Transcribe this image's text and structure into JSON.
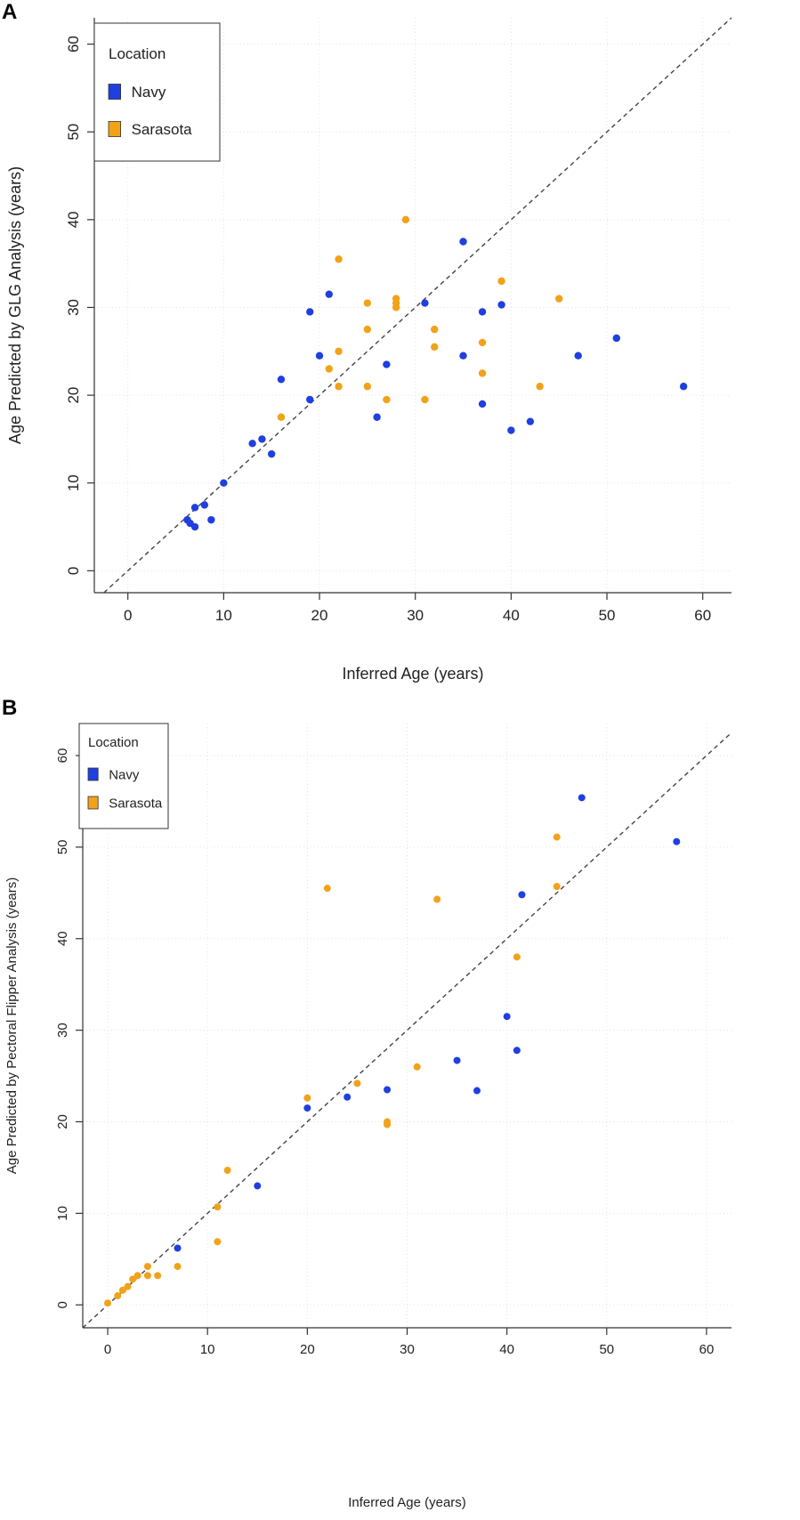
{
  "colors": {
    "navy": "#1f3fe0",
    "sarasota": "#f2a218",
    "grid": "#e3e3e3",
    "axis": "#333333",
    "diagonal": "#444444"
  },
  "chart_data": [
    {
      "panel_label": "A",
      "type": "scatter",
      "title": "",
      "xlabel": "Inferred Age (years)",
      "ylabel": "Age Predicted by GLG Analysis (years)",
      "xlim": [
        -3.5,
        63
      ],
      "ylim": [
        -2.5,
        63
      ],
      "xticks": [
        0,
        10,
        20,
        30,
        40,
        50,
        60
      ],
      "yticks": [
        0,
        10,
        20,
        30,
        40,
        50,
        60
      ],
      "grid": true,
      "reference_line": "y = x (dashed)",
      "legend": {
        "title": "Location",
        "position": "top-left",
        "entries": [
          "Navy",
          "Sarasota"
        ]
      },
      "series": [
        {
          "name": "Navy",
          "color": "#1f3fe0",
          "points": [
            [
              6.2,
              5.8
            ],
            [
              6.5,
              5.4
            ],
            [
              7,
              5
            ],
            [
              7,
              7.2
            ],
            [
              8,
              7.5
            ],
            [
              8.7,
              5.8
            ],
            [
              10,
              10
            ],
            [
              13,
              14.5
            ],
            [
              14,
              15
            ],
            [
              15,
              13.3
            ],
            [
              16,
              21.8
            ],
            [
              19,
              19.5
            ],
            [
              19,
              29.5
            ],
            [
              20,
              24.5
            ],
            [
              21,
              31.5
            ],
            [
              26,
              17.5
            ],
            [
              27,
              23.5
            ],
            [
              31,
              30.5
            ],
            [
              35,
              37.5
            ],
            [
              35,
              24.5
            ],
            [
              37,
              29.5
            ],
            [
              37,
              19
            ],
            [
              39,
              30.3
            ],
            [
              40,
              16
            ],
            [
              42,
              17
            ],
            [
              47,
              24.5
            ],
            [
              51,
              26.5
            ],
            [
              58,
              21
            ]
          ]
        },
        {
          "name": "Sarasota",
          "color": "#f2a218",
          "points": [
            [
              16,
              17.5
            ],
            [
              21,
              23
            ],
            [
              22,
              35.5
            ],
            [
              22,
              25
            ],
            [
              22,
              21
            ],
            [
              25,
              30.5
            ],
            [
              25,
              27.5
            ],
            [
              25,
              21
            ],
            [
              27,
              19.5
            ],
            [
              28,
              31
            ],
            [
              28,
              30.5
            ],
            [
              28,
              30
            ],
            [
              29,
              40
            ],
            [
              31,
              19.5
            ],
            [
              32,
              27.5
            ],
            [
              32,
              25.5
            ],
            [
              37,
              26
            ],
            [
              37,
              22.5
            ],
            [
              39,
              33
            ],
            [
              43,
              21
            ],
            [
              45,
              31
            ]
          ]
        }
      ]
    },
    {
      "panel_label": "B",
      "type": "scatter",
      "title": "",
      "xlabel": "Inferred Age (years)",
      "ylabel": "Age Predicted by Pectoral Flipper Analysis (years)",
      "xlim": [
        -2.5,
        62.5
      ],
      "ylim": [
        -2.5,
        63.5
      ],
      "xticks": [
        0,
        10,
        20,
        30,
        40,
        50,
        60
      ],
      "yticks": [
        0,
        10,
        20,
        30,
        40,
        50,
        60
      ],
      "grid": true,
      "reference_line": "y = x (dashed)",
      "legend": {
        "title": "Location",
        "position": "top-left",
        "entries": [
          "Navy",
          "Sarasota"
        ]
      },
      "series": [
        {
          "name": "Navy",
          "color": "#1f3fe0",
          "points": [
            [
              7,
              6.2
            ],
            [
              15,
              13
            ],
            [
              20,
              21.5
            ],
            [
              24,
              22.7
            ],
            [
              28,
              23.5
            ],
            [
              35,
              26.7
            ],
            [
              37,
              23.4
            ],
            [
              40,
              31.5
            ],
            [
              41,
              27.8
            ],
            [
              41.5,
              44.8
            ],
            [
              47.5,
              55.4
            ],
            [
              57,
              50.6
            ]
          ]
        },
        {
          "name": "Sarasota",
          "color": "#f2a218",
          "points": [
            [
              0,
              0.2
            ],
            [
              1,
              1
            ],
            [
              1.5,
              1.6
            ],
            [
              2,
              2
            ],
            [
              2.5,
              2.8
            ],
            [
              3,
              3.2
            ],
            [
              4,
              4.2
            ],
            [
              4,
              3.2
            ],
            [
              5,
              3.2
            ],
            [
              7,
              4.2
            ],
            [
              11,
              6.9
            ],
            [
              11,
              10.7
            ],
            [
              12,
              14.7
            ],
            [
              20,
              22.6
            ],
            [
              22,
              45.5
            ],
            [
              25,
              24.2
            ],
            [
              28,
              20
            ],
            [
              28,
              19.7
            ],
            [
              31,
              26
            ],
            [
              33,
              44.3
            ],
            [
              41,
              38
            ],
            [
              45,
              51.1
            ],
            [
              45,
              45.7
            ]
          ]
        }
      ]
    }
  ]
}
